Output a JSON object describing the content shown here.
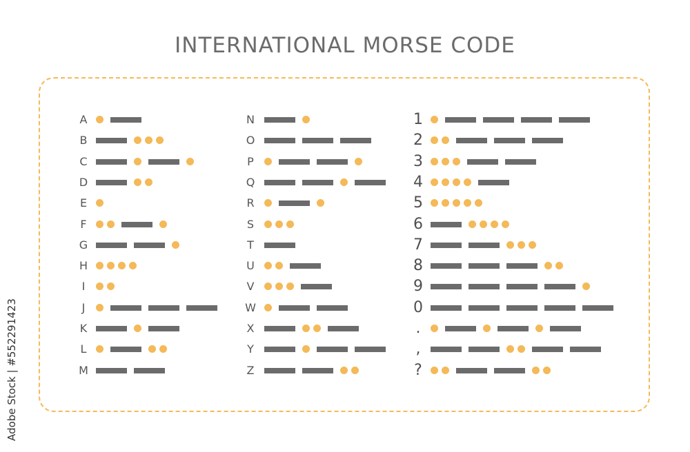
{
  "title": "INTERNATIONAL MORSE CODE",
  "watermark": "Adobe Stock | #552291423",
  "colors": {
    "dot": "#f4b958",
    "dash": "#6b6b6b",
    "border": "#f4b958",
    "text": "#555555"
  },
  "columns": [
    {
      "id": "letters-a-m",
      "items": [
        {
          "label": "A",
          "code": ".-"
        },
        {
          "label": "B",
          "code": "-..."
        },
        {
          "label": "C",
          "code": "-.-."
        },
        {
          "label": "D",
          "code": "-.."
        },
        {
          "label": "E",
          "code": "."
        },
        {
          "label": "F",
          "code": "..-."
        },
        {
          "label": "G",
          "code": "--."
        },
        {
          "label": "H",
          "code": "...."
        },
        {
          "label": "I",
          "code": ".."
        },
        {
          "label": "J",
          "code": ".---"
        },
        {
          "label": "K",
          "code": "-.-"
        },
        {
          "label": "L",
          "code": ".-.."
        },
        {
          "label": "M",
          "code": "--"
        }
      ]
    },
    {
      "id": "letters-n-z",
      "items": [
        {
          "label": "N",
          "code": "-."
        },
        {
          "label": "O",
          "code": "---"
        },
        {
          "label": "P",
          "code": ".--."
        },
        {
          "label": "Q",
          "code": "--.-"
        },
        {
          "label": "R",
          "code": ".-."
        },
        {
          "label": "S",
          "code": "..."
        },
        {
          "label": "T",
          "code": "-"
        },
        {
          "label": "U",
          "code": "..-"
        },
        {
          "label": "V",
          "code": "...-"
        },
        {
          "label": "W",
          "code": ".--"
        },
        {
          "label": "X",
          "code": "-..-"
        },
        {
          "label": "Y",
          "code": "-.--"
        },
        {
          "label": "Z",
          "code": "--.."
        }
      ]
    },
    {
      "id": "numbers-punct",
      "items": [
        {
          "label": "1",
          "code": ".----"
        },
        {
          "label": "2",
          "code": "..---"
        },
        {
          "label": "3",
          "code": "...--"
        },
        {
          "label": "4",
          "code": "....-"
        },
        {
          "label": "5",
          "code": "....."
        },
        {
          "label": "6",
          "code": "-...."
        },
        {
          "label": "7",
          "code": "--..."
        },
        {
          "label": "8",
          "code": "---.."
        },
        {
          "label": "9",
          "code": "----."
        },
        {
          "label": "0",
          "code": "-----"
        },
        {
          "label": ".",
          "code": ".-.-.-"
        },
        {
          "label": ",",
          "code": "--..--"
        },
        {
          "label": "?",
          "code": "..--.."
        }
      ]
    }
  ]
}
